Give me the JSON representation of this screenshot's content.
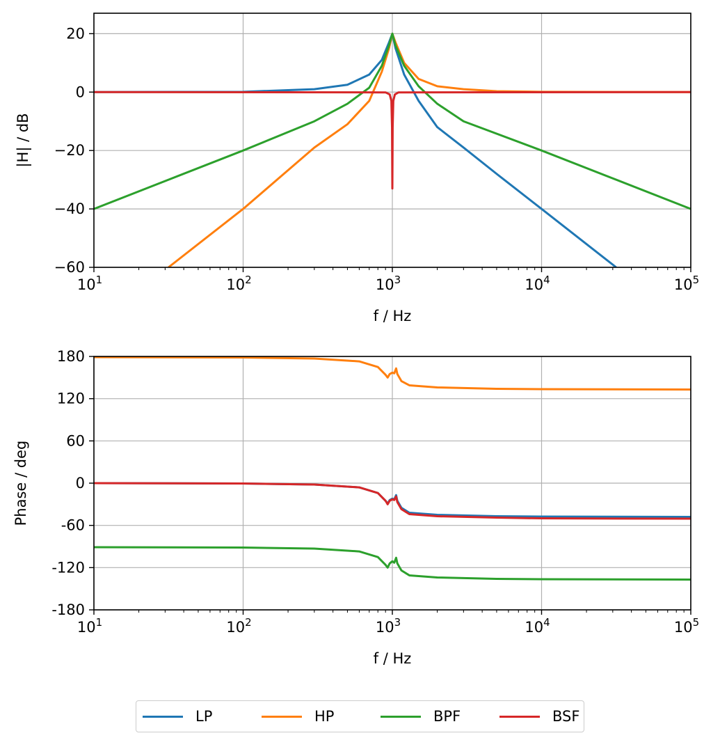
{
  "chart_data": [
    {
      "type": "line",
      "xlabel": "f / Hz",
      "ylabel": "|H| / dB",
      "xscale": "log",
      "xlim": [
        10,
        100000
      ],
      "ylim": [
        -60,
        27
      ],
      "yticks": [
        "20",
        "0",
        "−20",
        "−40",
        "−60"
      ],
      "ytick_values": [
        20,
        0,
        -20,
        -40,
        -60
      ],
      "xtick_exponents": [
        "1",
        "2",
        "3",
        "4",
        "5"
      ],
      "xtick_base": "10",
      "grid": true,
      "series": [
        {
          "name": "LP",
          "color": "#1f77b4",
          "x": [
            10,
            100,
            300,
            500,
            700,
            850,
            950,
            1000,
            1050,
            1200,
            1500,
            2000,
            3000,
            5000,
            10000,
            31623
          ],
          "y": [
            0,
            0.1,
            1,
            2.5,
            6,
            11,
            17,
            20,
            15,
            6,
            -3,
            -12,
            -19,
            -28,
            -40,
            -60
          ]
        },
        {
          "name": "HP",
          "color": "#ff7f0e",
          "x": [
            31.6,
            100,
            300,
            500,
            700,
            850,
            950,
            1000,
            1050,
            1200,
            1500,
            2000,
            3000,
            5000,
            10000,
            100000
          ],
          "y": [
            -60,
            -40,
            -19,
            -11,
            -3,
            7,
            15,
            20,
            17,
            10,
            4.5,
            2,
            1,
            0.3,
            0.1,
            0
          ]
        },
        {
          "name": "BPF",
          "color": "#2ca02c",
          "x": [
            10,
            100,
            300,
            500,
            700,
            850,
            950,
            1000,
            1050,
            1200,
            1500,
            2000,
            3000,
            10000,
            100000
          ],
          "y": [
            -40,
            -20,
            -10,
            -4,
            1.5,
            9,
            16,
            20,
            16,
            9,
            2,
            -4,
            -10,
            -20,
            -40
          ]
        },
        {
          "name": "BSF",
          "color": "#d62728",
          "x": [
            10,
            900,
            960,
            985,
            995,
            1000,
            1005,
            1015,
            1040,
            1100,
            100000
          ],
          "y": [
            0,
            -0.1,
            -0.8,
            -3,
            -12,
            -33,
            -12,
            -3,
            -0.8,
            -0.1,
            0
          ]
        }
      ]
    },
    {
      "type": "line",
      "xlabel": "f / Hz",
      "ylabel": "Phase / deg",
      "xscale": "log",
      "xlim": [
        10,
        100000
      ],
      "ylim": [
        -180,
        180
      ],
      "yticks": [
        "180",
        "120",
        "60",
        "0",
        "-60",
        "-120",
        "-180"
      ],
      "ytick_values": [
        180,
        120,
        60,
        0,
        -60,
        -120,
        -180
      ],
      "xtick_exponents": [
        "1",
        "2",
        "3",
        "4",
        "5"
      ],
      "xtick_base": "10",
      "grid": true,
      "series": [
        {
          "name": "LP",
          "color": "#1f77b4",
          "x": [
            10,
            100,
            300,
            600,
            800,
            900,
            930,
            960,
            1000,
            1030,
            1060,
            1080,
            1150,
            1300,
            2000,
            5000,
            10000,
            100000
          ],
          "y": [
            0,
            -0.5,
            -2,
            -6,
            -14,
            -25,
            -29,
            -24,
            -22,
            -23,
            -17,
            -25,
            -35,
            -42,
            -45,
            -47,
            -47.5,
            -48
          ]
        },
        {
          "name": "HP",
          "color": "#ff7f0e",
          "x": [
            10,
            100,
            300,
            600,
            800,
            900,
            930,
            960,
            1000,
            1030,
            1060,
            1080,
            1150,
            1300,
            2000,
            5000,
            10000,
            100000
          ],
          "y": [
            179,
            178.5,
            177,
            173,
            165,
            154,
            150,
            155,
            157,
            156,
            163,
            155,
            145,
            139,
            136,
            134,
            133.5,
            133
          ]
        },
        {
          "name": "BPF",
          "color": "#2ca02c",
          "x": [
            10,
            100,
            300,
            600,
            800,
            900,
            930,
            960,
            1000,
            1030,
            1060,
            1080,
            1150,
            1300,
            2000,
            5000,
            10000,
            100000
          ],
          "y": [
            -91,
            -91.5,
            -93,
            -97,
            -105,
            -116,
            -120,
            -114,
            -111,
            -113,
            -106,
            -114,
            -124,
            -131,
            -134,
            -136,
            -136.5,
            -137
          ]
        },
        {
          "name": "BSF",
          "color": "#d62728",
          "x": [
            10,
            100,
            300,
            600,
            800,
            900,
            930,
            960,
            1000,
            1030,
            1060,
            1080,
            1150,
            1300,
            2000,
            5000,
            10000,
            100000
          ],
          "y": [
            0,
            -0.5,
            -2,
            -6,
            -14,
            -25,
            -30,
            -25,
            -23,
            -24,
            -19,
            -27,
            -37,
            -44,
            -47,
            -49,
            -50,
            -50.5
          ]
        }
      ]
    }
  ],
  "legend": {
    "placement": "bottom-center",
    "entries": [
      {
        "label": "LP",
        "color": "#1f77b4"
      },
      {
        "label": "HP",
        "color": "#ff7f0e"
      },
      {
        "label": "BPF",
        "color": "#2ca02c"
      },
      {
        "label": "BSF",
        "color": "#d62728"
      }
    ]
  }
}
